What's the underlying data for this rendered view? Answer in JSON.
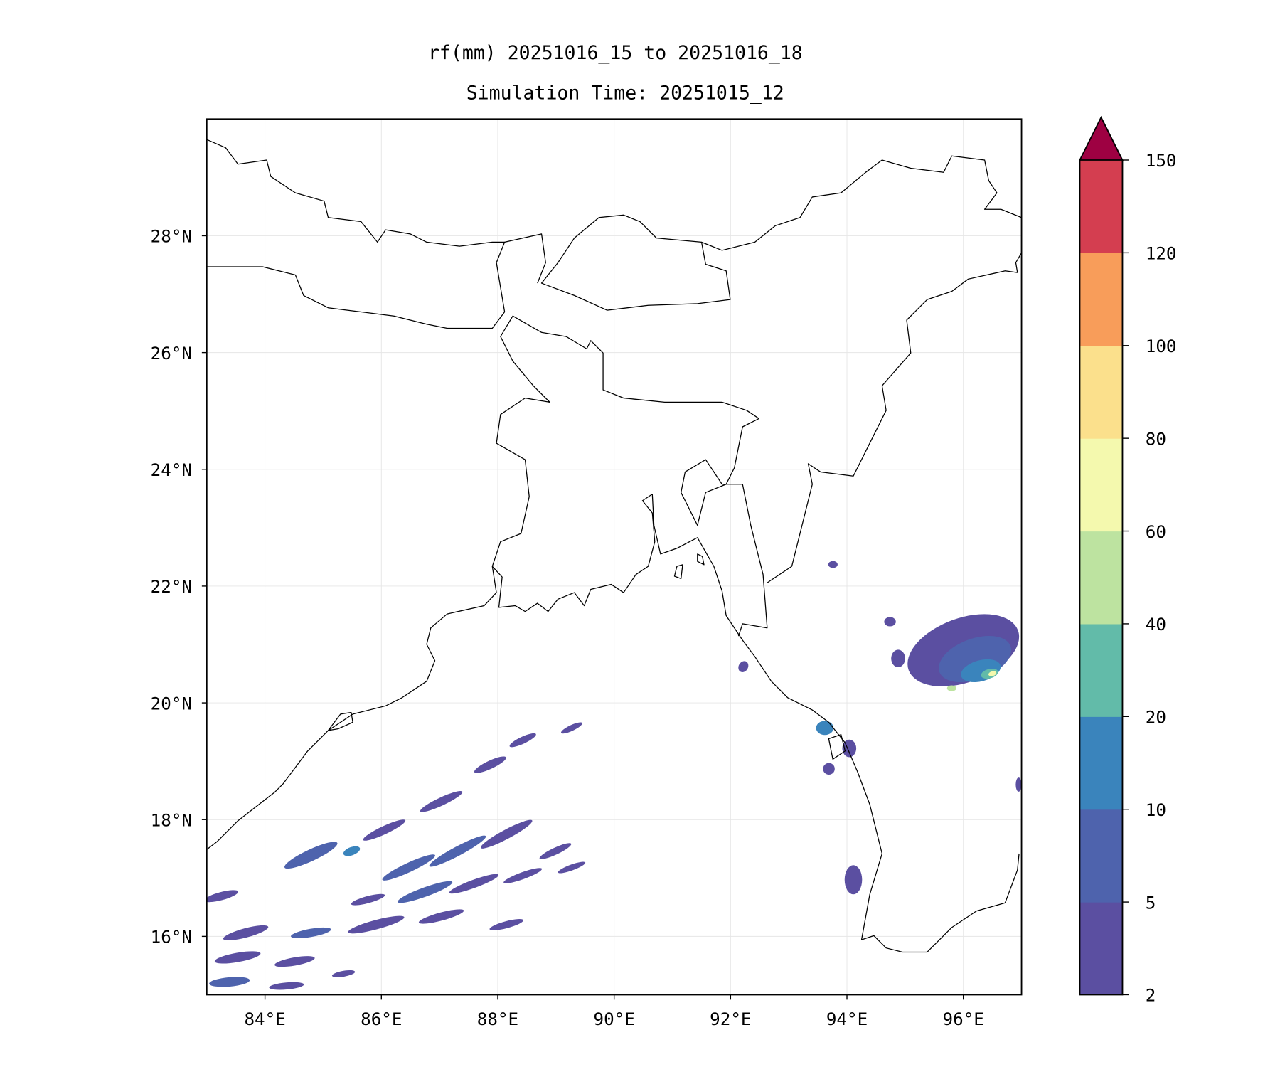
{
  "chart_data": {
    "type": "heatmap",
    "subtype": "filled-contour map",
    "title": [
      "rf(mm) 20251016_15 to 20251016_18",
      "Simulation Time: 20251015_12"
    ],
    "xlabel": "",
    "ylabel": "",
    "xlim": [
      83,
      97
    ],
    "ylim": [
      15,
      30
    ],
    "grid": true,
    "x_ticks": [
      84,
      86,
      88,
      90,
      92,
      94,
      96
    ],
    "x_tick_labels": [
      "84°E",
      "86°E",
      "88°E",
      "90°E",
      "92°E",
      "94°E",
      "96°E"
    ],
    "y_ticks": [
      16,
      18,
      20,
      22,
      24,
      26,
      28
    ],
    "y_tick_labels": [
      "16°N",
      "18°N",
      "20°N",
      "22°N",
      "24°N",
      "26°N",
      "28°N"
    ],
    "colorbar": {
      "levels": [
        2,
        5,
        10,
        20,
        40,
        60,
        80,
        100,
        120,
        150
      ],
      "tick_labels": [
        "2",
        "5",
        "10",
        "20",
        "40",
        "60",
        "80",
        "100",
        "120",
        "150"
      ],
      "colors": [
        "#5b4fa1",
        "#4e63ad",
        "#3a84bc",
        "#62bba9",
        "#bde3a0",
        "#f4f9ae",
        "#fbe08c",
        "#f89d5a",
        "#d43e50"
      ],
      "extend_max_color": "#9e0142",
      "placement": "right"
    },
    "rain_cells": [
      {
        "lon": 84.79,
        "lat": 17.39,
        "rx": 0.5,
        "ry": 0.1,
        "angle": -25,
        "value": 6
      },
      {
        "lon": 85.49,
        "lat": 17.46,
        "rx": 0.15,
        "ry": 0.07,
        "angle": -20,
        "value": 12
      },
      {
        "lon": 86.05,
        "lat": 17.82,
        "rx": 0.4,
        "ry": 0.07,
        "angle": -25,
        "value": 3
      },
      {
        "lon": 87.03,
        "lat": 18.31,
        "rx": 0.4,
        "ry": 0.07,
        "angle": -25,
        "value": 3
      },
      {
        "lon": 87.87,
        "lat": 18.94,
        "rx": 0.3,
        "ry": 0.07,
        "angle": -25,
        "value": 3
      },
      {
        "lon": 88.43,
        "lat": 19.36,
        "rx": 0.25,
        "ry": 0.06,
        "angle": -25,
        "value": 3
      },
      {
        "lon": 89.27,
        "lat": 19.57,
        "rx": 0.2,
        "ry": 0.05,
        "angle": -25,
        "value": 3
      },
      {
        "lon": 86.47,
        "lat": 17.18,
        "rx": 0.5,
        "ry": 0.08,
        "angle": -25,
        "value": 6
      },
      {
        "lon": 87.31,
        "lat": 17.46,
        "rx": 0.55,
        "ry": 0.08,
        "angle": -28,
        "value": 6
      },
      {
        "lon": 88.15,
        "lat": 17.75,
        "rx": 0.5,
        "ry": 0.08,
        "angle": -28,
        "value": 4
      },
      {
        "lon": 88.99,
        "lat": 17.46,
        "rx": 0.3,
        "ry": 0.06,
        "angle": -25,
        "value": 3
      },
      {
        "lon": 85.77,
        "lat": 16.63,
        "rx": 0.3,
        "ry": 0.06,
        "angle": -15,
        "value": 3
      },
      {
        "lon": 86.75,
        "lat": 16.76,
        "rx": 0.5,
        "ry": 0.08,
        "angle": -20,
        "value": 6
      },
      {
        "lon": 87.59,
        "lat": 16.9,
        "rx": 0.45,
        "ry": 0.07,
        "angle": -20,
        "value": 4
      },
      {
        "lon": 88.43,
        "lat": 17.04,
        "rx": 0.35,
        "ry": 0.06,
        "angle": -20,
        "value": 3
      },
      {
        "lon": 89.27,
        "lat": 17.18,
        "rx": 0.25,
        "ry": 0.05,
        "angle": -20,
        "value": 3
      },
      {
        "lon": 83.67,
        "lat": 16.06,
        "rx": 0.4,
        "ry": 0.08,
        "angle": -15,
        "value": 4
      },
      {
        "lon": 84.79,
        "lat": 16.06,
        "rx": 0.35,
        "ry": 0.07,
        "angle": -10,
        "value": 6
      },
      {
        "lon": 85.91,
        "lat": 16.2,
        "rx": 0.5,
        "ry": 0.08,
        "angle": -15,
        "value": 4
      },
      {
        "lon": 87.03,
        "lat": 16.34,
        "rx": 0.4,
        "ry": 0.07,
        "angle": -15,
        "value": 3
      },
      {
        "lon": 88.15,
        "lat": 16.2,
        "rx": 0.3,
        "ry": 0.06,
        "angle": -15,
        "value": 3
      },
      {
        "lon": 83.53,
        "lat": 15.64,
        "rx": 0.4,
        "ry": 0.08,
        "angle": -10,
        "value": 4
      },
      {
        "lon": 84.51,
        "lat": 15.57,
        "rx": 0.35,
        "ry": 0.07,
        "angle": -10,
        "value": 3
      },
      {
        "lon": 83.39,
        "lat": 15.22,
        "rx": 0.35,
        "ry": 0.08,
        "angle": -5,
        "value": 6
      },
      {
        "lon": 84.37,
        "lat": 15.15,
        "rx": 0.3,
        "ry": 0.06,
        "angle": -5,
        "value": 3
      },
      {
        "lon": 83.25,
        "lat": 16.69,
        "rx": 0.3,
        "ry": 0.07,
        "angle": -15,
        "value": 3
      },
      {
        "lon": 85.35,
        "lat": 15.36,
        "rx": 0.2,
        "ry": 0.05,
        "angle": -10,
        "value": 3
      },
      {
        "lon": 96.0,
        "lat": 20.9,
        "rx": 1.0,
        "ry": 0.55,
        "angle": -20,
        "value": 4
      },
      {
        "lon": 96.2,
        "lat": 20.75,
        "rx": 0.65,
        "ry": 0.35,
        "angle": -20,
        "value": 7
      },
      {
        "lon": 96.3,
        "lat": 20.55,
        "rx": 0.35,
        "ry": 0.18,
        "angle": -15,
        "value": 15
      },
      {
        "lon": 96.45,
        "lat": 20.5,
        "rx": 0.15,
        "ry": 0.08,
        "angle": -15,
        "value": 30
      },
      {
        "lon": 96.5,
        "lat": 20.5,
        "rx": 0.07,
        "ry": 0.04,
        "angle": -15,
        "value": 65
      },
      {
        "lon": 95.8,
        "lat": 20.25,
        "rx": 0.08,
        "ry": 0.05,
        "angle": 0,
        "value": 45
      },
      {
        "lon": 94.88,
        "lat": 20.76,
        "rx": 0.12,
        "ry": 0.15,
        "angle": 0,
        "value": 3
      },
      {
        "lon": 94.74,
        "lat": 21.39,
        "rx": 0.1,
        "ry": 0.08,
        "angle": 0,
        "value": 3
      },
      {
        "lon": 93.62,
        "lat": 19.57,
        "rx": 0.15,
        "ry": 0.12,
        "angle": 0,
        "value": 12
      },
      {
        "lon": 94.04,
        "lat": 19.22,
        "rx": 0.12,
        "ry": 0.15,
        "angle": 0,
        "value": 4
      },
      {
        "lon": 94.11,
        "lat": 16.97,
        "rx": 0.15,
        "ry": 0.25,
        "angle": 0,
        "value": 4
      },
      {
        "lon": 93.76,
        "lat": 22.37,
        "rx": 0.08,
        "ry": 0.06,
        "angle": 0,
        "value": 3
      },
      {
        "lon": 92.22,
        "lat": 20.62,
        "rx": 0.08,
        "ry": 0.1,
        "angle": 30,
        "value": 3
      },
      {
        "lon": 93.69,
        "lat": 18.87,
        "rx": 0.1,
        "ry": 0.1,
        "angle": 0,
        "value": 3
      },
      {
        "lon": 96.95,
        "lat": 18.6,
        "rx": 0.05,
        "ry": 0.12,
        "angle": 0,
        "value": 3
      }
    ]
  }
}
